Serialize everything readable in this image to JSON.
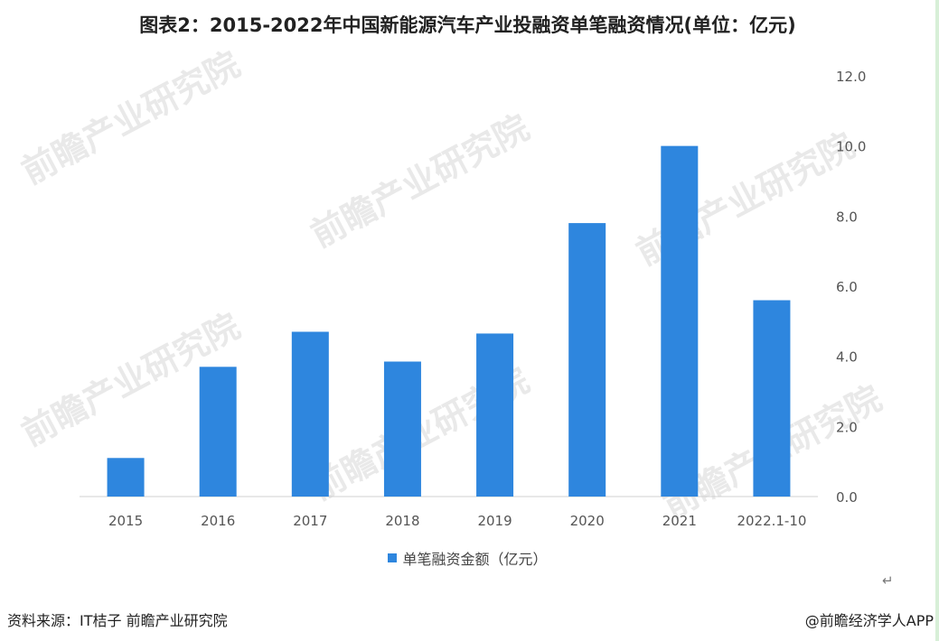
{
  "title": "图表2：2015-2022年中国新能源汽车产业投融资单笔融资情况(单位：亿元)",
  "chart_data": {
    "type": "bar",
    "categories": [
      "2015",
      "2016",
      "2017",
      "2018",
      "2019",
      "2020",
      "2021",
      "2022.1-10"
    ],
    "series": [
      {
        "name": "单笔融资金额（亿元）",
        "values": [
          1.1,
          3.7,
          4.7,
          3.85,
          4.65,
          7.8,
          10.0,
          5.6
        ]
      }
    ],
    "ylim": [
      0,
      12
    ],
    "yticks": [
      "0.0",
      "2.0",
      "4.0",
      "6.0",
      "8.0",
      "10.0",
      "12.0"
    ],
    "y_axis_side": "right",
    "grid": false,
    "legend_position": "bottom",
    "bar_color": "#2e86de"
  },
  "legend_label": "单笔融资金额（亿元）",
  "return_mark": "↵",
  "footer": {
    "source": "资料来源：IT桔子 前瞻产业研究院",
    "credit": "@前瞻经济学人APP"
  },
  "watermark": "前瞻产业研究院"
}
